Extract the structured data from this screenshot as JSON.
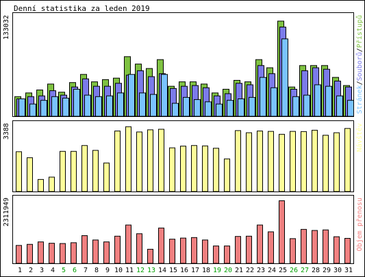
{
  "chart_data": {
    "type": "bar",
    "title": "Denní statistika za leden 2019",
    "categories": [
      "1",
      "2",
      "3",
      "4",
      "5",
      "6",
      "7",
      "8",
      "9",
      "10",
      "11",
      "12",
      "13",
      "14",
      "15",
      "16",
      "17",
      "18",
      "19",
      "20",
      "21",
      "22",
      "23",
      "24",
      "25",
      "26",
      "27",
      "28",
      "29",
      "30",
      "31"
    ],
    "weekend_days": [
      "5",
      "6",
      "12",
      "13",
      "19",
      "20",
      "26",
      "27"
    ],
    "panels": [
      {
        "name": "top",
        "ymax_label": "133032",
        "ymax": 133032,
        "side_label_parts": [
          "Stránek",
          "/",
          "Souborů",
          "/",
          "Přístupů"
        ],
        "series": [
          {
            "name": "Přístupů",
            "color": "#7fc242",
            "values": [
              27000,
              32000,
              36000,
              44000,
              33000,
              46000,
              57000,
              47000,
              50000,
              52000,
              81000,
              71000,
              65000,
              77000,
              41000,
              47000,
              47000,
              44000,
              32000,
              37000,
              49000,
              47000,
              77000,
              66000,
              129000,
              40000,
              69000,
              69000,
              69000,
              53000,
              42000
            ]
          },
          {
            "name": "Souborů",
            "color": "#7b7bea",
            "values": [
              24000,
              27000,
              28000,
              35000,
              29000,
              40000,
              51000,
              41000,
              41000,
              45000,
              56000,
              62000,
              54000,
              58000,
              38000,
              41000,
              42000,
              39000,
              28000,
              31000,
              45000,
              43000,
              69000,
              58000,
              121000,
              37000,
              62000,
              66000,
              64000,
              48000,
              40000
            ]
          },
          {
            "name": "Stránek",
            "color": "#7ac3ff",
            "values": [
              24000,
              17000,
              22000,
              27000,
              25000,
              37000,
              29000,
              27000,
              28000,
              32000,
              57000,
              32000,
              30000,
              57000,
              18000,
              26000,
              23000,
              20000,
              17000,
              22000,
              24000,
              26000,
              53000,
              39000,
              105000,
              27000,
              29000,
              43000,
              41000,
              28000,
              22000
            ]
          }
        ]
      },
      {
        "name": "middle",
        "ymax_label": "3388",
        "ymax": 3388,
        "side_label_parts": [
          "Návštěv"
        ],
        "series": [
          {
            "name": "Návštěv",
            "color": "#ffff99",
            "values": [
              2070,
              1760,
              640,
              760,
              2090,
              2090,
              2390,
              2140,
              1490,
              3140,
              3360,
              3090,
              3200,
              3230,
              2270,
              2360,
              2390,
              2370,
              2250,
              1700,
              3160,
              3050,
              3140,
              3120,
              2970,
              3120,
              3110,
              3180,
              2920,
              3050,
              3270
            ]
          }
        ]
      },
      {
        "name": "bottom",
        "ymax_label": "2311949",
        "ymax": 2311949,
        "side_label_parts": [
          "Objem přenosu"
        ],
        "series": [
          {
            "name": "Objem přenosu",
            "color": "#f08080",
            "values": [
              670000,
              710000,
              800000,
              750000,
              740000,
              770000,
              1030000,
              870000,
              800000,
              1010000,
              1420000,
              1100000,
              530000,
              1310000,
              900000,
              940000,
              960000,
              870000,
              650000,
              650000,
              1000000,
              1010000,
              1420000,
              1170000,
              2311949,
              920000,
              1260000,
              1220000,
              1240000,
              990000,
              930000
            ]
          }
        ]
      }
    ],
    "colors": {
      "border": "#000000",
      "weekday_label": "#000000",
      "weekend_label": "#00a000",
      "side_label_slash": "#000000",
      "top_side_label_colors": [
        "#7ac3ff",
        "#000000",
        "#7b7bea",
        "#000000",
        "#7fc242"
      ],
      "middle_side_label_color": "#ffff99",
      "bottom_side_label_color": "#f08080"
    }
  }
}
